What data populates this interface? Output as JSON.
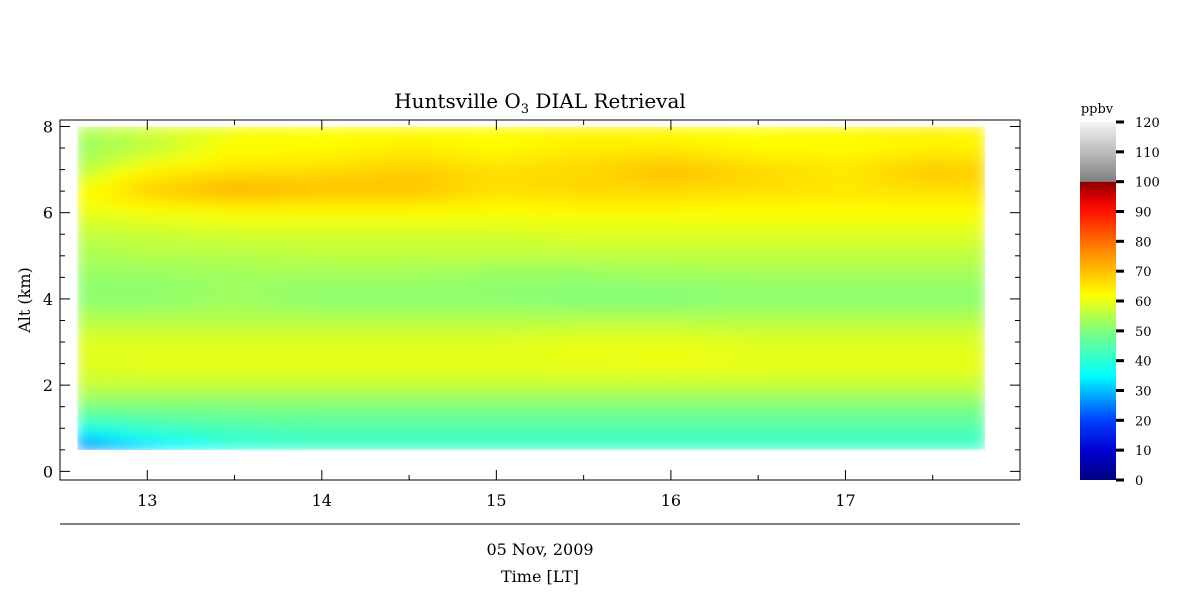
{
  "chart_data": {
    "type": "heatmap",
    "title_main": "Huntsville O",
    "title_sub": "3",
    "title_rest": " DIAL Retrieval",
    "ylabel": "Alt (km)",
    "date_label": "05 Nov, 2009",
    "xlabel": "Time [LT]",
    "colorbar_label": "ppbv",
    "xlim": [
      12.5,
      18.0
    ],
    "ylim": [
      -0.2,
      8.15
    ],
    "data_x_range": [
      12.6,
      17.8
    ],
    "data_y_range": [
      0.5,
      8.0
    ],
    "x_ticks": [
      13,
      14,
      15,
      16,
      17
    ],
    "y_ticks": [
      0,
      2,
      4,
      6,
      8
    ],
    "colorbar_range": [
      0,
      120
    ],
    "colorbar_ticks": [
      0,
      10,
      20,
      30,
      40,
      50,
      60,
      70,
      80,
      90,
      100,
      110,
      120
    ],
    "grid": false,
    "colors": {
      "low": "#00007f",
      "mid": "#00ffff",
      "high": "#ffff00",
      "peak": "#ff0000",
      "saturated": "#8b0000",
      "over_low": "#808080",
      "over_high": "#f5f5f5"
    },
    "altitudes_km": [
      0.5,
      1.0,
      1.5,
      2.0,
      2.5,
      3.0,
      3.5,
      4.0,
      4.5,
      5.0,
      5.5,
      6.0,
      6.5,
      7.0,
      7.5,
      8.0
    ],
    "times_lt": [
      12.6,
      13.0,
      13.5,
      14.0,
      14.5,
      15.0,
      15.5,
      16.0,
      16.5,
      17.0,
      17.5,
      17.8
    ],
    "ozone_ppbv": [
      [
        22,
        30,
        38,
        40,
        40,
        40,
        40,
        40,
        40,
        40,
        40,
        40
      ],
      [
        38,
        42,
        44,
        45,
        45,
        45,
        45,
        45,
        45,
        45,
        45,
        45
      ],
      [
        50,
        50,
        50,
        50,
        50,
        50,
        50,
        50,
        50,
        50,
        50,
        50
      ],
      [
        57,
        57,
        57,
        57,
        57,
        57,
        57,
        57,
        57,
        57,
        57,
        57
      ],
      [
        59,
        60,
        60,
        60,
        60,
        60,
        60,
        61,
        60,
        60,
        60,
        60
      ],
      [
        59,
        59,
        59,
        59,
        59,
        59,
        60,
        60,
        59,
        59,
        59,
        59
      ],
      [
        55,
        55,
        55,
        55,
        55,
        55,
        55,
        55,
        55,
        55,
        55,
        55
      ],
      [
        51,
        51,
        53,
        51,
        51,
        51,
        50,
        50,
        51,
        51,
        51,
        51
      ],
      [
        52,
        52,
        53,
        53,
        53,
        52,
        52,
        53,
        53,
        53,
        53,
        53
      ],
      [
        54,
        55,
        55,
        56,
        56,
        56,
        56,
        56,
        56,
        56,
        56,
        56
      ],
      [
        56,
        57,
        58,
        58,
        58,
        58,
        59,
        59,
        59,
        59,
        59,
        59
      ],
      [
        60,
        61,
        62,
        62,
        62,
        62,
        62,
        62,
        62,
        62,
        62,
        62
      ],
      [
        62,
        68,
        72,
        70,
        70,
        66,
        67,
        67,
        66,
        65,
        66,
        66
      ],
      [
        55,
        63,
        65,
        66,
        68,
        66,
        67,
        70,
        67,
        65,
        69,
        68
      ],
      [
        52,
        55,
        62,
        62,
        64,
        62,
        64,
        64,
        62,
        62,
        63,
        63
      ],
      [
        55,
        59,
        61,
        62,
        62,
        62,
        63,
        62,
        62,
        63,
        64,
        63
      ]
    ]
  }
}
